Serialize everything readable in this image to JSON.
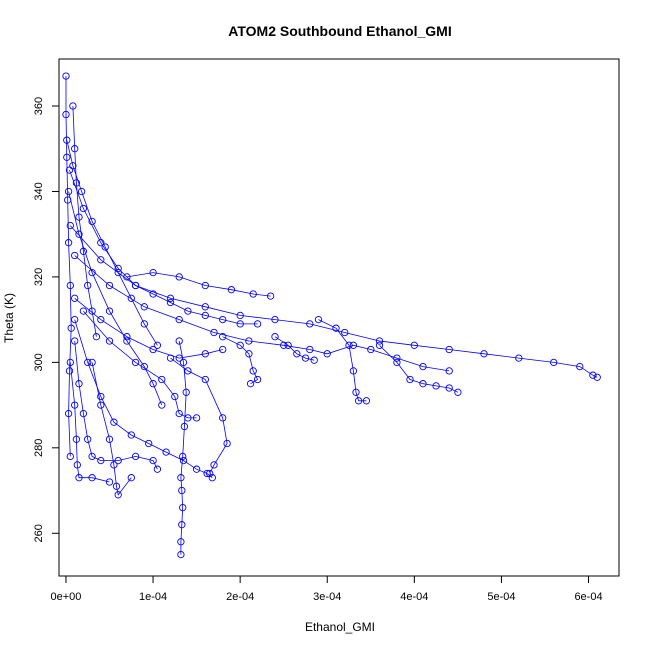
{
  "chart_data": {
    "type": "scatter",
    "title": "ATOM2 Southbound Ethanol_GMI",
    "xlabel": "Ethanol_GMI",
    "ylabel": "Theta (K)",
    "xlim": [
      -8e-06,
      0.000635
    ],
    "ylim": [
      250,
      371
    ],
    "x_ticks": [
      0,
      0.0001,
      0.0002,
      0.0003,
      0.0004,
      0.0005,
      0.0006
    ],
    "x_tick_labels": [
      "0e+00",
      "1e-04",
      "2e-04",
      "3e-04",
      "4e-04",
      "5e-04",
      "6e-04"
    ],
    "y_ticks": [
      260,
      280,
      300,
      320,
      340,
      360
    ],
    "y_tick_labels": [
      "260",
      "280",
      "300",
      "320",
      "340",
      "360"
    ],
    "marker": "open-circle",
    "connect_points": true,
    "color": "#0000ff",
    "grid": false,
    "series": [
      {
        "values": [
          [
            0.0,
            367
          ],
          [
            0.0,
            358
          ],
          [
            1e-06,
            348
          ],
          [
            2e-06,
            338
          ],
          [
            3e-06,
            328
          ],
          [
            5e-06,
            318
          ],
          [
            6e-06,
            308
          ],
          [
            4e-06,
            298
          ],
          [
            3e-06,
            288
          ],
          [
            5e-06,
            278
          ]
        ]
      },
      {
        "values": [
          [
            8e-06,
            360
          ],
          [
            1e-05,
            350
          ],
          [
            1.2e-05,
            342
          ],
          [
            1.5e-05,
            334
          ],
          [
            2e-05,
            326
          ],
          [
            2.5e-05,
            318
          ],
          [
            3e-05,
            312
          ],
          [
            3.5e-05,
            306
          ]
        ]
      },
      {
        "values": [
          [
            4e-06,
            345
          ],
          [
            2e-05,
            336
          ],
          [
            4e-05,
            328
          ],
          [
            6e-05,
            322
          ],
          [
            8e-05,
            318
          ],
          [
            0.0001,
            316
          ],
          [
            0.00012,
            314
          ],
          [
            0.00014,
            312
          ],
          [
            0.00016,
            311
          ],
          [
            0.00018,
            310
          ],
          [
            0.0002,
            309
          ],
          [
            0.00022,
            309
          ]
        ]
      },
      {
        "values": [
          [
            5e-06,
            332
          ],
          [
            4e-05,
            324
          ],
          [
            8e-05,
            318
          ],
          [
            0.00012,
            315
          ],
          [
            0.00016,
            313
          ],
          [
            0.0002,
            311
          ],
          [
            0.00024,
            310
          ],
          [
            0.00028,
            309
          ],
          [
            0.00032,
            307
          ],
          [
            0.00036,
            305
          ],
          [
            0.0004,
            304
          ],
          [
            0.00044,
            303
          ],
          [
            0.00048,
            302
          ],
          [
            0.00052,
            301
          ],
          [
            0.00056,
            300
          ],
          [
            0.00059,
            299
          ],
          [
            0.000605,
            297
          ],
          [
            0.00061,
            296.5
          ]
        ]
      },
      {
        "values": [
          [
            1e-05,
            325
          ],
          [
            5e-05,
            318
          ],
          [
            9e-05,
            313
          ],
          [
            0.00013,
            310
          ],
          [
            0.00017,
            307
          ],
          [
            0.00021,
            305
          ],
          [
            0.00025,
            304
          ],
          [
            0.00028,
            303
          ],
          [
            0.0003,
            302
          ],
          [
            0.00033,
            304
          ],
          [
            0.00035,
            303
          ],
          [
            0.00038,
            301
          ],
          [
            0.00041,
            299
          ],
          [
            0.00044,
            298
          ]
        ]
      },
      {
        "values": [
          [
            7e-05,
            320
          ],
          [
            0.0001,
            321
          ],
          [
            0.00013,
            320
          ],
          [
            0.00016,
            318
          ],
          [
            0.00019,
            317
          ],
          [
            0.000215,
            316
          ],
          [
            0.000235,
            315.5
          ]
        ]
      },
      {
        "values": [
          [
            1e-05,
            315
          ],
          [
            4e-05,
            310
          ],
          [
            7e-05,
            306
          ],
          [
            0.0001,
            303
          ],
          [
            0.00013,
            301
          ],
          [
            0.00016,
            302
          ],
          [
            0.00018,
            303
          ]
        ]
      },
      {
        "values": [
          [
            2e-05,
            312
          ],
          [
            5e-05,
            305
          ],
          [
            8e-05,
            300
          ],
          [
            0.00011,
            296
          ],
          [
            0.000125,
            292
          ],
          [
            0.00013,
            288
          ],
          [
            0.00014,
            287
          ],
          [
            0.00015,
            287
          ]
        ]
      },
      {
        "values": [
          [
            1e-05,
            310
          ],
          [
            2.5e-05,
            300
          ],
          [
            4e-05,
            292
          ],
          [
            5.5e-05,
            286
          ],
          [
            7.5e-05,
            283
          ],
          [
            9.5e-05,
            281
          ],
          [
            0.000115,
            279
          ],
          [
            0.000135,
            277
          ],
          [
            0.00015,
            275
          ],
          [
            0.000162,
            274
          ],
          [
            0.000168,
            273
          ]
        ]
      },
      {
        "values": [
          [
            1e-05,
            305
          ],
          [
            1.5e-05,
            295
          ],
          [
            2e-05,
            288
          ],
          [
            2.5e-05,
            282
          ],
          [
            3e-05,
            278
          ],
          [
            4e-05,
            277
          ],
          [
            6e-05,
            277
          ],
          [
            8e-05,
            278
          ],
          [
            0.0001,
            277
          ],
          [
            0.000105,
            275
          ]
        ]
      },
      {
        "values": [
          [
            5e-06,
            300
          ],
          [
            1e-05,
            290
          ],
          [
            1.2e-05,
            282
          ],
          [
            1.3e-05,
            276
          ],
          [
            1.5e-05,
            273
          ],
          [
            3e-05,
            273
          ],
          [
            5e-05,
            272
          ]
        ]
      },
      {
        "values": [
          [
            3e-05,
            300
          ],
          [
            4e-05,
            290
          ],
          [
            5e-05,
            282
          ],
          [
            5.5e-05,
            276
          ],
          [
            5.8e-05,
            271
          ],
          [
            6e-05,
            269
          ],
          [
            7.5e-05,
            273
          ]
        ]
      },
      {
        "values": [
          [
            0.00013,
            305
          ],
          [
            0.000135,
            300
          ],
          [
            0.000138,
            293
          ],
          [
            0.000136,
            285
          ],
          [
            0.000134,
            278
          ],
          [
            0.000132,
            273
          ],
          [
            0.000133,
            270
          ],
          [
            0.000134,
            266
          ],
          [
            0.000133,
            262
          ],
          [
            0.000132,
            258
          ],
          [
            0.000132,
            255
          ]
        ]
      },
      {
        "values": [
          [
            0.00012,
            301
          ],
          [
            0.00014,
            298
          ],
          [
            0.00016,
            296
          ],
          [
            0.00018,
            287
          ],
          [
            0.000185,
            281
          ],
          [
            0.00017,
            276
          ],
          [
            0.000165,
            274
          ]
        ]
      },
      {
        "values": [
          [
            0.00018,
            306
          ],
          [
            0.0002,
            304
          ],
          [
            0.00021,
            302
          ],
          [
            0.000215,
            298
          ],
          [
            0.00022,
            296
          ],
          [
            0.000212,
            295
          ]
        ]
      },
      {
        "values": [
          [
            0.00024,
            306
          ],
          [
            0.000255,
            304
          ],
          [
            0.000265,
            302
          ],
          [
            0.000275,
            301
          ],
          [
            0.000285,
            300.5
          ]
        ]
      },
      {
        "values": [
          [
            0.00029,
            310
          ],
          [
            0.00031,
            308
          ],
          [
            0.000325,
            304
          ],
          [
            0.00033,
            298
          ],
          [
            0.000333,
            293
          ],
          [
            0.000336,
            291
          ],
          [
            0.000345,
            291
          ]
        ]
      },
      {
        "values": [
          [
            0.00036,
            304
          ],
          [
            0.00038,
            300
          ],
          [
            0.000395,
            296
          ],
          [
            0.00041,
            295
          ],
          [
            0.000425,
            294.5
          ],
          [
            0.00044,
            294
          ],
          [
            0.00045,
            293
          ]
        ]
      },
      {
        "values": [
          [
            1e-06,
            352
          ],
          [
            8e-06,
            346
          ],
          [
            1.8e-05,
            340
          ],
          [
            3e-05,
            333
          ],
          [
            4.5e-05,
            327
          ],
          [
            6e-05,
            321
          ],
          [
            7.5e-05,
            315
          ],
          [
            9e-05,
            309
          ],
          [
            0.000105,
            304
          ]
        ]
      },
      {
        "values": [
          [
            3e-06,
            340
          ],
          [
            1.5e-05,
            330
          ],
          [
            3e-05,
            321
          ],
          [
            5e-05,
            312
          ],
          [
            7e-05,
            305
          ],
          [
            9e-05,
            299
          ],
          [
            0.0001,
            295
          ],
          [
            0.00011,
            290
          ]
        ]
      }
    ]
  }
}
